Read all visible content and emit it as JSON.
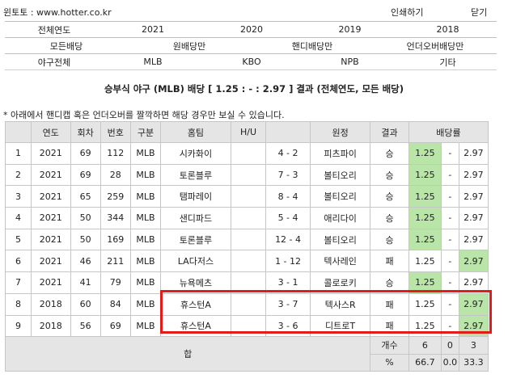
{
  "header": {
    "site": "윈토토 : www.hotter.co.kr",
    "print_label": "인쇄하기",
    "close_label": "닫기"
  },
  "filters": {
    "years": [
      "전체연도",
      "2021",
      "2020",
      "2019",
      "2018"
    ],
    "bet_types": [
      "모든배당",
      "원배당만",
      "핸디배당만",
      "언더오버배당만"
    ],
    "leagues": [
      "야구전체",
      "MLB",
      "KBO",
      "NPB",
      "기타"
    ]
  },
  "result_title": "승부식 야구 (MLB) 배당 [ 1.25 : - : 2.97 ] 결과 (전체연도, 모든 배당)",
  "note": "* 아래에서 핸디캡 혹은 언더오버를 짤깍하면 해당 경우만 보실 수 있습니다.",
  "table": {
    "columns": [
      "",
      "연도",
      "회차",
      "번호",
      "구분",
      "홈팀",
      "H/U",
      "",
      "원정",
      "결과",
      "배당률"
    ],
    "rows": [
      {
        "no": "1",
        "year": "2021",
        "round": "69",
        "num": "112",
        "type": "MLB",
        "home": "시카화이",
        "hu": "",
        "score": "4 - 2",
        "away": "피츠파이",
        "result": "승",
        "odd1": "1.25",
        "odd2": "-",
        "odd3": "2.97"
      },
      {
        "no": "2",
        "year": "2021",
        "round": "69",
        "num": "28",
        "type": "MLB",
        "home": "토론블루",
        "hu": "",
        "score": "7 - 3",
        "away": "볼티오리",
        "result": "승",
        "odd1": "1.25",
        "odd2": "-",
        "odd3": "2.97"
      },
      {
        "no": "3",
        "year": "2021",
        "round": "65",
        "num": "259",
        "type": "MLB",
        "home": "탬파레이",
        "hu": "",
        "score": "8 - 4",
        "away": "볼티오리",
        "result": "승",
        "odd1": "1.25",
        "odd2": "-",
        "odd3": "2.97"
      },
      {
        "no": "4",
        "year": "2021",
        "round": "50",
        "num": "344",
        "type": "MLB",
        "home": "샌디파드",
        "hu": "",
        "score": "5 - 4",
        "away": "애리다이",
        "result": "승",
        "odd1": "1.25",
        "odd2": "-",
        "odd3": "2.97"
      },
      {
        "no": "5",
        "year": "2021",
        "round": "50",
        "num": "169",
        "type": "MLB",
        "home": "토론블루",
        "hu": "",
        "score": "12 - 4",
        "away": "볼티오리",
        "result": "승",
        "odd1": "1.25",
        "odd2": "-",
        "odd3": "2.97"
      },
      {
        "no": "6",
        "year": "2021",
        "round": "46",
        "num": "211",
        "type": "MLB",
        "home": "LA다저스",
        "hu": "",
        "score": "1 - 12",
        "away": "텍사레인",
        "result": "패",
        "odd1": "1.25",
        "odd2": "-",
        "odd3": "2.97"
      },
      {
        "no": "7",
        "year": "2021",
        "round": "41",
        "num": "79",
        "type": "MLB",
        "home": "뉴욕메츠",
        "hu": "",
        "score": "3 - 1",
        "away": "콜로로키",
        "result": "승",
        "odd1": "1.25",
        "odd2": "-",
        "odd3": "2.97"
      },
      {
        "no": "8",
        "year": "2018",
        "round": "60",
        "num": "84",
        "type": "MLB",
        "home": "휴스턴A",
        "hu": "",
        "score": "3 - 7",
        "away": "텍사스R",
        "result": "패",
        "odd1": "1.25",
        "odd2": "-",
        "odd3": "2.97"
      },
      {
        "no": "9",
        "year": "2018",
        "round": "56",
        "num": "69",
        "type": "MLB",
        "home": "휴스턴A",
        "hu": "",
        "score": "3 - 6",
        "away": "디트로T",
        "result": "패",
        "odd1": "1.25",
        "odd2": "-",
        "odd3": "2.97"
      }
    ],
    "summary": {
      "label": "합",
      "count_label": "개수",
      "counts": [
        "6",
        "0",
        "3"
      ],
      "pct_label": "%",
      "pcts": [
        "66.7",
        "0.0",
        "33.3"
      ]
    }
  },
  "colors": {
    "highlight_green": "#b9e6a8",
    "header_gray": "#e5e5e5",
    "annotation_red": "#e31b1b"
  }
}
